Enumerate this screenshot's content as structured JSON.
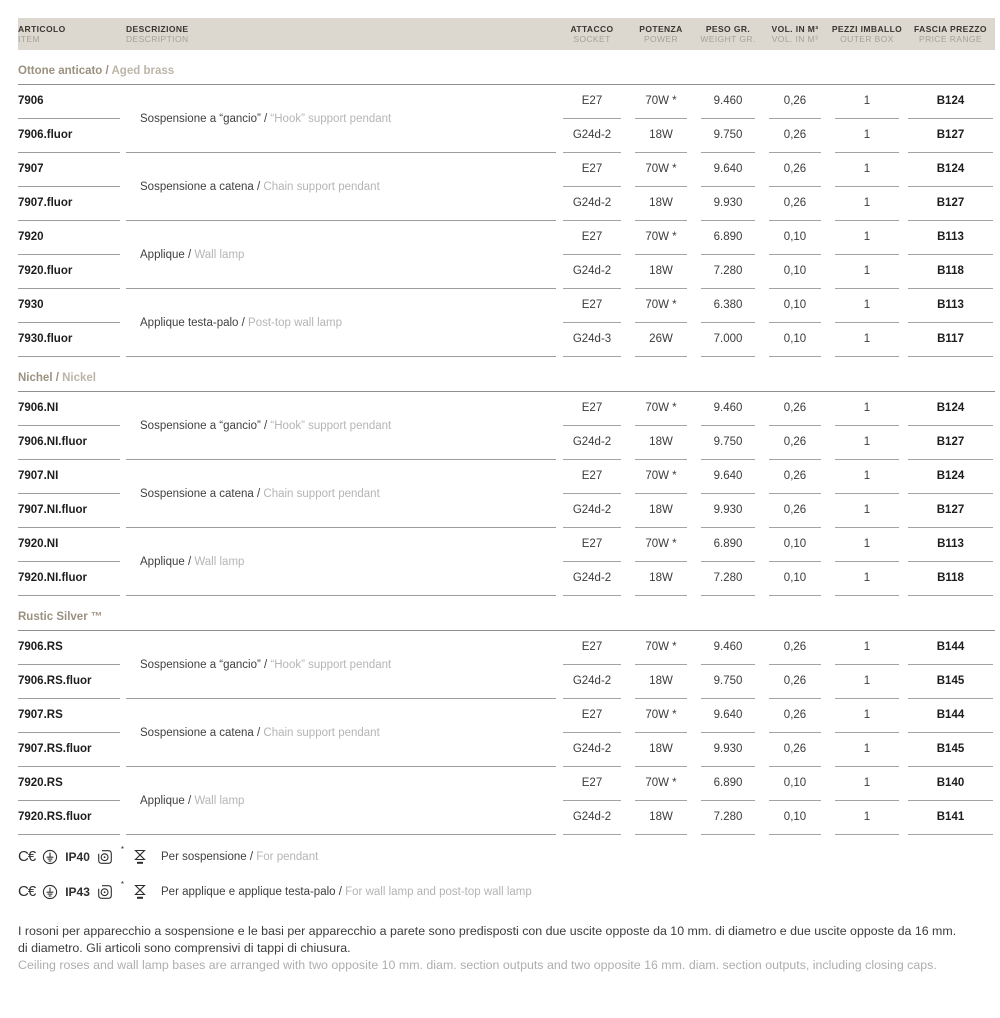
{
  "table": {
    "headers": [
      {
        "it": "ARTICOLO",
        "en": "ITEM"
      },
      {
        "it": "DESCRIZIONE",
        "en": "DESCRIPTION"
      },
      {
        "it": "ATTACCO",
        "en": "SOCKET"
      },
      {
        "it": "POTENZA",
        "en": "POWER"
      },
      {
        "it": "PESO GR.",
        "en": "WEIGHT GR."
      },
      {
        "it": "VOL. IN M³",
        "en": "VOL. IN M³"
      },
      {
        "it": "PEZZI IMBALLO",
        "en": "OUTER BOX"
      },
      {
        "it": "FASCIA PREZZO",
        "en": "PRICE RANGE"
      }
    ],
    "sections": [
      {
        "title_it": "Ottone anticato / ",
        "title_en": "Aged brass",
        "groups": [
          {
            "desc_it": "Sospensione a “gancio” / ",
            "desc_en": "“Hook” support pendant",
            "rows": [
              {
                "code": "7906",
                "socket": "E27",
                "power": "70W *",
                "weight": "9.460",
                "volume": "0,26",
                "pieces": "1",
                "price": "B124"
              },
              {
                "code": "7906.fluor",
                "socket": "G24d-2",
                "power": "18W",
                "weight": "9.750",
                "volume": "0,26",
                "pieces": "1",
                "price": "B127"
              }
            ]
          },
          {
            "desc_it": "Sospensione a catena / ",
            "desc_en": "Chain support pendant",
            "rows": [
              {
                "code": "7907",
                "socket": "E27",
                "power": "70W *",
                "weight": "9.640",
                "volume": "0,26",
                "pieces": "1",
                "price": "B124"
              },
              {
                "code": "7907.fluor",
                "socket": "G24d-2",
                "power": "18W",
                "weight": "9.930",
                "volume": "0,26",
                "pieces": "1",
                "price": "B127"
              }
            ]
          },
          {
            "desc_it": "Applique / ",
            "desc_en": "Wall lamp",
            "rows": [
              {
                "code": "7920",
                "socket": "E27",
                "power": "70W *",
                "weight": "6.890",
                "volume": "0,10",
                "pieces": "1",
                "price": "B113"
              },
              {
                "code": "7920.fluor",
                "socket": "G24d-2",
                "power": "18W",
                "weight": "7.280",
                "volume": "0,10",
                "pieces": "1",
                "price": "B118"
              }
            ]
          },
          {
            "desc_it": "Applique testa-palo / ",
            "desc_en": "Post-top wall lamp",
            "rows": [
              {
                "code": "7930",
                "socket": "E27",
                "power": "70W *",
                "weight": "6.380",
                "volume": "0,10",
                "pieces": "1",
                "price": "B113"
              },
              {
                "code": "7930.fluor",
                "socket": "G24d-3",
                "power": "26W",
                "weight": "7.000",
                "volume": "0,10",
                "pieces": "1",
                "price": "B117"
              }
            ]
          }
        ]
      },
      {
        "title_it": "Nichel / ",
        "title_en": "Nickel",
        "groups": [
          {
            "desc_it": "Sospensione a “gancio” / ",
            "desc_en": "“Hook” support pendant",
            "rows": [
              {
                "code": "7906.NI",
                "socket": "E27",
                "power": "70W *",
                "weight": "9.460",
                "volume": "0,26",
                "pieces": "1",
                "price": "B124"
              },
              {
                "code": "7906.NI.fluor",
                "socket": "G24d-2",
                "power": "18W",
                "weight": "9.750",
                "volume": "0,26",
                "pieces": "1",
                "price": "B127"
              }
            ]
          },
          {
            "desc_it": "Sospensione a catena / ",
            "desc_en": "Chain support pendant",
            "rows": [
              {
                "code": "7907.NI",
                "socket": "E27",
                "power": "70W *",
                "weight": "9.640",
                "volume": "0,26",
                "pieces": "1",
                "price": "B124"
              },
              {
                "code": "7907.NI.fluor",
                "socket": "G24d-2",
                "power": "18W",
                "weight": "9.930",
                "volume": "0,26",
                "pieces": "1",
                "price": "B127"
              }
            ]
          },
          {
            "desc_it": "Applique / ",
            "desc_en": "Wall lamp",
            "rows": [
              {
                "code": "7920.NI",
                "socket": "E27",
                "power": "70W *",
                "weight": "6.890",
                "volume": "0,10",
                "pieces": "1",
                "price": "B113"
              },
              {
                "code": "7920.NI.fluor",
                "socket": "G24d-2",
                "power": "18W",
                "weight": "7.280",
                "volume": "0,10",
                "pieces": "1",
                "price": "B118"
              }
            ]
          }
        ]
      },
      {
        "title_it": "Rustic Silver ™",
        "title_en": "",
        "groups": [
          {
            "desc_it": "Sospensione a “gancio” / ",
            "desc_en": "“Hook” support pendant",
            "rows": [
              {
                "code": "7906.RS",
                "socket": "E27",
                "power": "70W *",
                "weight": "9.460",
                "volume": "0,26",
                "pieces": "1",
                "price": "B144"
              },
              {
                "code": "7906.RS.fluor",
                "socket": "G24d-2",
                "power": "18W",
                "weight": "9.750",
                "volume": "0,26",
                "pieces": "1",
                "price": "B145"
              }
            ]
          },
          {
            "desc_it": "Sospensione a catena / ",
            "desc_en": "Chain support pendant",
            "rows": [
              {
                "code": "7907.RS",
                "socket": "E27",
                "power": "70W *",
                "weight": "9.640",
                "volume": "0,26",
                "pieces": "1",
                "price": "B144"
              },
              {
                "code": "7907.RS.fluor",
                "socket": "G24d-2",
                "power": "18W",
                "weight": "9.930",
                "volume": "0,26",
                "pieces": "1",
                "price": "B145"
              }
            ]
          },
          {
            "desc_it": "Applique / ",
            "desc_en": "Wall lamp",
            "rows": [
              {
                "code": "7920.RS",
                "socket": "E27",
                "power": "70W *",
                "weight": "6.890",
                "volume": "0,10",
                "pieces": "1",
                "price": "B140"
              },
              {
                "code": "7920.RS.fluor",
                "socket": "G24d-2",
                "power": "18W",
                "weight": "7.280",
                "volume": "0,10",
                "pieces": "1",
                "price": "B141"
              }
            ]
          }
        ]
      }
    ]
  },
  "certifications": [
    {
      "ce": "C€",
      "ip": "IP40",
      "asterisk": "*",
      "label_it": "Per sospensione / ",
      "label_en": "For pendant"
    },
    {
      "ce": "C€",
      "ip": "IP43",
      "asterisk": "*",
      "label_it": "Per applique e applique testa-palo / ",
      "label_en": "For wall lamp and post-top wall lamp"
    }
  ],
  "footnote": {
    "it": "I rosoni per apparecchio a sospensione e le basi per apparecchio a parete sono predisposti con due uscite opposte da 10 mm. di diametro e due uscite opposte da 16 mm. di diametro. Gli articoli sono comprensivi di tappi di chiusura.",
    "en": "Ceiling roses and wall lamp bases are arranged with two opposite 10 mm. diam. section outputs and two opposite 16 mm. diam. section outputs, including closing caps."
  },
  "colors": {
    "header_band_bg": "#dcd8d0",
    "section_title": "#9c9180",
    "secondary_text": "#b5b5b5",
    "primary_text": "#1d1d1d",
    "rule": "#9c9c9c"
  }
}
